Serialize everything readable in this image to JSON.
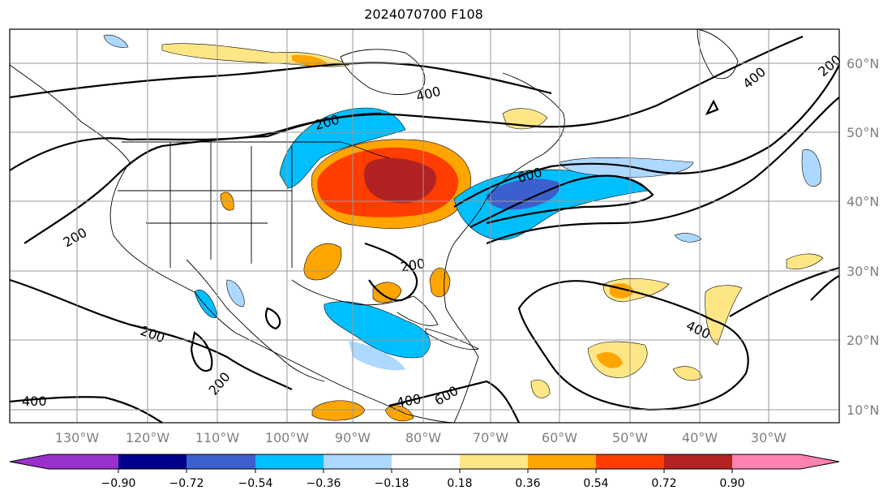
{
  "title": "2024070700 F108",
  "lon_ticks": [
    "130°W",
    "120°W",
    "110°W",
    "100°W",
    "90°W",
    "80°W",
    "70°W",
    "60°W",
    "50°W",
    "40°W",
    "30°W"
  ],
  "lat_ticks": [
    "60°N",
    "50°N",
    "40°N",
    "30°N",
    "20°N",
    "10°N"
  ],
  "contour_labels": [
    "200",
    "400",
    "600"
  ],
  "colorbar": {
    "ticks": [
      "−0.90",
      "−0.72",
      "−0.54",
      "−0.36",
      "−0.18",
      "0.18",
      "0.36",
      "0.54",
      "0.72",
      "0.90"
    ],
    "colors": [
      "#9932cc",
      "#00008b",
      "#3b5fcd",
      "#00bfff",
      "#add8ff",
      "#ffffff",
      "#ffe685",
      "#ffa500",
      "#ff3d00",
      "#b22222",
      "#ff82b0"
    ]
  }
}
